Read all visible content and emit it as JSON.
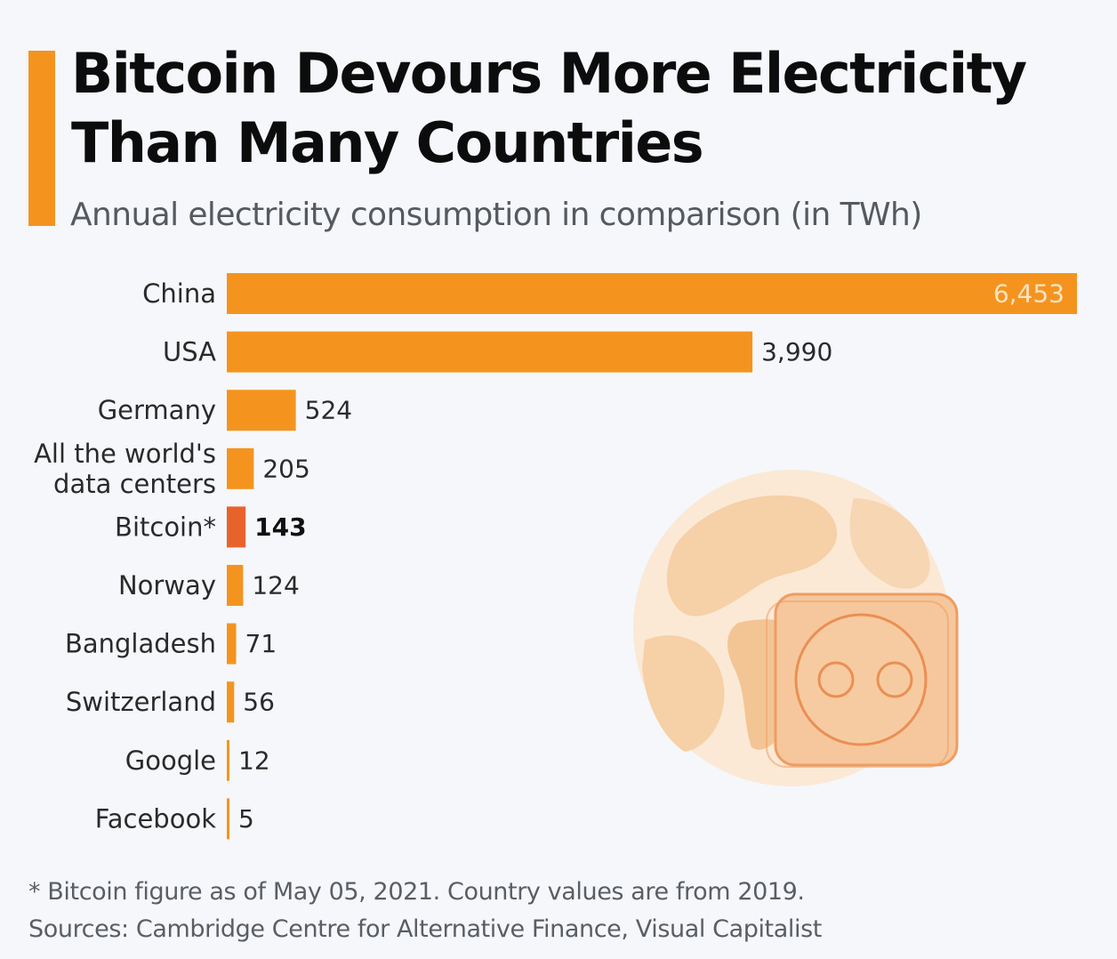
{
  "header": {
    "title_line1": "Bitcoin Devours More Electricity",
    "title_line2": "Than Many Countries",
    "subtitle": "Annual electricity consumption in comparison (in TWh)"
  },
  "chart_data": {
    "type": "bar",
    "orientation": "horizontal",
    "title": "Bitcoin Devours More Electricity Than Many Countries",
    "subtitle": "Annual electricity consumption in comparison (in TWh)",
    "unit": "TWh",
    "categories": [
      "China",
      "USA",
      "Germany",
      "All the world's data centers",
      "Bitcoin*",
      "Norway",
      "Bangladesh",
      "Switzerland",
      "Google",
      "Facebook"
    ],
    "category_lines": [
      [
        "China"
      ],
      [
        "USA"
      ],
      [
        "Germany"
      ],
      [
        "All the world's",
        "data centers"
      ],
      [
        "Bitcoin*"
      ],
      [
        "Norway"
      ],
      [
        "Bangladesh"
      ],
      [
        "Switzerland"
      ],
      [
        "Google"
      ],
      [
        "Facebook"
      ]
    ],
    "values": [
      6453,
      3990,
      524,
      205,
      143,
      124,
      71,
      56,
      12,
      5
    ],
    "value_labels": [
      "6,453",
      "3,990",
      "524",
      "205",
      "143",
      "124",
      "71",
      "56",
      "12",
      "5"
    ],
    "highlight_index": 4,
    "xlim": [
      0,
      6453
    ],
    "grid": false,
    "colors": {
      "bar": "#f4941f",
      "highlight": "#e8632b",
      "accent": "#f4941f"
    }
  },
  "illustration": {
    "icon": "globe-with-power-socket-icon"
  },
  "footer": {
    "note": "* Bitcoin figure as of May 05, 2021. Country values are from 2019.",
    "sources": "Sources: Cambridge Centre for Alternative Finance, Visual Capitalist"
  }
}
